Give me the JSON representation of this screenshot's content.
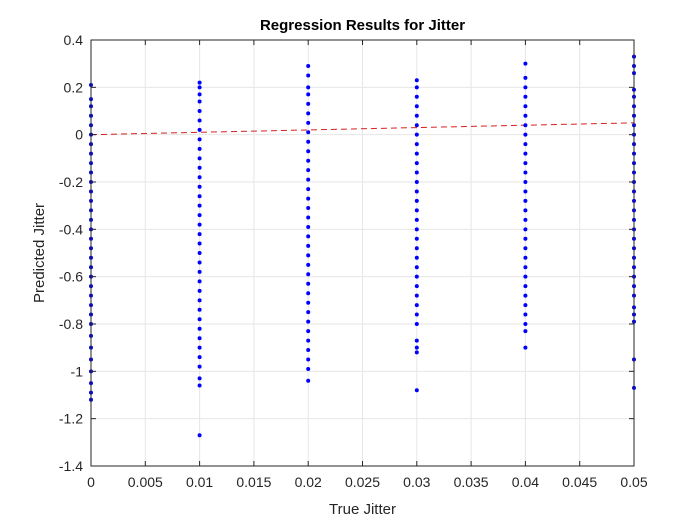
{
  "chart_data": {
    "type": "scatter",
    "title": "Regression Results for Jitter",
    "xlabel": "True Jitter",
    "ylabel": "Predicted Jitter",
    "xlim": [
      0,
      0.05
    ],
    "ylim": [
      -1.4,
      0.4
    ],
    "xticks": [
      0,
      0.005,
      0.01,
      0.015,
      0.02,
      0.025,
      0.03,
      0.035,
      0.04,
      0.045,
      0.05
    ],
    "xtick_labels": [
      "0",
      "0.005",
      "0.01",
      "0.015",
      "0.02",
      "0.025",
      "0.03",
      "0.035",
      "0.04",
      "0.045",
      "0.05"
    ],
    "yticks": [
      0.4,
      0.2,
      0,
      -0.2,
      -0.4,
      -0.6,
      -0.8,
      -1,
      -1.2,
      -1.4
    ],
    "ytick_labels": [
      "0.4",
      "0.2",
      "0",
      "-0.2",
      "-0.4",
      "-0.6",
      "-0.8",
      "-1",
      "-1.2",
      "-1.4"
    ],
    "grid": true,
    "colors": {
      "points": "#0000ff",
      "reference_line": "#d62020",
      "grid": "#e6e6e6",
      "axis": "#262626"
    },
    "series": [
      {
        "style": "points",
        "points": [
          {
            "x": 0,
            "y": 0.21
          },
          {
            "x": 0,
            "y": 0.15
          },
          {
            "x": 0,
            "y": 0.12
          },
          {
            "x": 0,
            "y": 0.08
          },
          {
            "x": 0,
            "y": 0.04
          },
          {
            "x": 0,
            "y": 0.0
          },
          {
            "x": 0,
            "y": -0.04
          },
          {
            "x": 0,
            "y": -0.08
          },
          {
            "x": 0,
            "y": -0.12
          },
          {
            "x": 0,
            "y": -0.16
          },
          {
            "x": 0,
            "y": -0.2
          },
          {
            "x": 0,
            "y": -0.24
          },
          {
            "x": 0,
            "y": -0.28
          },
          {
            "x": 0,
            "y": -0.32
          },
          {
            "x": 0,
            "y": -0.36
          },
          {
            "x": 0,
            "y": -0.4
          },
          {
            "x": 0,
            "y": -0.44
          },
          {
            "x": 0,
            "y": -0.48
          },
          {
            "x": 0,
            "y": -0.52
          },
          {
            "x": 0,
            "y": -0.56
          },
          {
            "x": 0,
            "y": -0.6
          },
          {
            "x": 0,
            "y": -0.64
          },
          {
            "x": 0,
            "y": -0.68
          },
          {
            "x": 0,
            "y": -0.72
          },
          {
            "x": 0,
            "y": -0.76
          },
          {
            "x": 0,
            "y": -0.8
          },
          {
            "x": 0,
            "y": -0.85
          },
          {
            "x": 0,
            "y": -0.9
          },
          {
            "x": 0,
            "y": -0.95
          },
          {
            "x": 0,
            "y": -1.0
          },
          {
            "x": 0,
            "y": -1.05
          },
          {
            "x": 0,
            "y": -1.09
          },
          {
            "x": 0,
            "y": -1.12
          },
          {
            "x": 0.01,
            "y": 0.22
          },
          {
            "x": 0.01,
            "y": 0.2
          },
          {
            "x": 0.01,
            "y": 0.17
          },
          {
            "x": 0.01,
            "y": 0.14
          },
          {
            "x": 0.01,
            "y": 0.1
          },
          {
            "x": 0.01,
            "y": 0.06
          },
          {
            "x": 0.01,
            "y": 0.02
          },
          {
            "x": 0.01,
            "y": -0.02
          },
          {
            "x": 0.01,
            "y": -0.06
          },
          {
            "x": 0.01,
            "y": -0.1
          },
          {
            "x": 0.01,
            "y": -0.14
          },
          {
            "x": 0.01,
            "y": -0.18
          },
          {
            "x": 0.01,
            "y": -0.22
          },
          {
            "x": 0.01,
            "y": -0.26
          },
          {
            "x": 0.01,
            "y": -0.3
          },
          {
            "x": 0.01,
            "y": -0.34
          },
          {
            "x": 0.01,
            "y": -0.38
          },
          {
            "x": 0.01,
            "y": -0.42
          },
          {
            "x": 0.01,
            "y": -0.46
          },
          {
            "x": 0.01,
            "y": -0.5
          },
          {
            "x": 0.01,
            "y": -0.54
          },
          {
            "x": 0.01,
            "y": -0.58
          },
          {
            "x": 0.01,
            "y": -0.62
          },
          {
            "x": 0.01,
            "y": -0.66
          },
          {
            "x": 0.01,
            "y": -0.7
          },
          {
            "x": 0.01,
            "y": -0.74
          },
          {
            "x": 0.01,
            "y": -0.78
          },
          {
            "x": 0.01,
            "y": -0.82
          },
          {
            "x": 0.01,
            "y": -0.86
          },
          {
            "x": 0.01,
            "y": -0.9
          },
          {
            "x": 0.01,
            "y": -0.94
          },
          {
            "x": 0.01,
            "y": -0.98
          },
          {
            "x": 0.01,
            "y": -1.03
          },
          {
            "x": 0.01,
            "y": -1.06
          },
          {
            "x": 0.01,
            "y": -1.27
          },
          {
            "x": 0.02,
            "y": 0.29
          },
          {
            "x": 0.02,
            "y": 0.25
          },
          {
            "x": 0.02,
            "y": 0.2
          },
          {
            "x": 0.02,
            "y": 0.17
          },
          {
            "x": 0.02,
            "y": 0.13
          },
          {
            "x": 0.02,
            "y": 0.09
          },
          {
            "x": 0.02,
            "y": 0.05
          },
          {
            "x": 0.02,
            "y": 0.01
          },
          {
            "x": 0.02,
            "y": -0.03
          },
          {
            "x": 0.02,
            "y": -0.07
          },
          {
            "x": 0.02,
            "y": -0.11
          },
          {
            "x": 0.02,
            "y": -0.15
          },
          {
            "x": 0.02,
            "y": -0.19
          },
          {
            "x": 0.02,
            "y": -0.23
          },
          {
            "x": 0.02,
            "y": -0.27
          },
          {
            "x": 0.02,
            "y": -0.31
          },
          {
            "x": 0.02,
            "y": -0.35
          },
          {
            "x": 0.02,
            "y": -0.39
          },
          {
            "x": 0.02,
            "y": -0.43
          },
          {
            "x": 0.02,
            "y": -0.47
          },
          {
            "x": 0.02,
            "y": -0.51
          },
          {
            "x": 0.02,
            "y": -0.55
          },
          {
            "x": 0.02,
            "y": -0.59
          },
          {
            "x": 0.02,
            "y": -0.63
          },
          {
            "x": 0.02,
            "y": -0.67
          },
          {
            "x": 0.02,
            "y": -0.71
          },
          {
            "x": 0.02,
            "y": -0.75
          },
          {
            "x": 0.02,
            "y": -0.79
          },
          {
            "x": 0.02,
            "y": -0.83
          },
          {
            "x": 0.02,
            "y": -0.87
          },
          {
            "x": 0.02,
            "y": -0.91
          },
          {
            "x": 0.02,
            "y": -0.95
          },
          {
            "x": 0.02,
            "y": -0.99
          },
          {
            "x": 0.02,
            "y": -1.04
          },
          {
            "x": 0.03,
            "y": 0.23
          },
          {
            "x": 0.03,
            "y": 0.2
          },
          {
            "x": 0.03,
            "y": 0.16
          },
          {
            "x": 0.03,
            "y": 0.12
          },
          {
            "x": 0.03,
            "y": 0.08
          },
          {
            "x": 0.03,
            "y": 0.04
          },
          {
            "x": 0.03,
            "y": 0.0
          },
          {
            "x": 0.03,
            "y": -0.04
          },
          {
            "x": 0.03,
            "y": -0.08
          },
          {
            "x": 0.03,
            "y": -0.12
          },
          {
            "x": 0.03,
            "y": -0.16
          },
          {
            "x": 0.03,
            "y": -0.2
          },
          {
            "x": 0.03,
            "y": -0.24
          },
          {
            "x": 0.03,
            "y": -0.28
          },
          {
            "x": 0.03,
            "y": -0.32
          },
          {
            "x": 0.03,
            "y": -0.36
          },
          {
            "x": 0.03,
            "y": -0.4
          },
          {
            "x": 0.03,
            "y": -0.44
          },
          {
            "x": 0.03,
            "y": -0.48
          },
          {
            "x": 0.03,
            "y": -0.52
          },
          {
            "x": 0.03,
            "y": -0.56
          },
          {
            "x": 0.03,
            "y": -0.6
          },
          {
            "x": 0.03,
            "y": -0.64
          },
          {
            "x": 0.03,
            "y": -0.68
          },
          {
            "x": 0.03,
            "y": -0.72
          },
          {
            "x": 0.03,
            "y": -0.76
          },
          {
            "x": 0.03,
            "y": -0.8
          },
          {
            "x": 0.03,
            "y": -0.87
          },
          {
            "x": 0.03,
            "y": -0.9
          },
          {
            "x": 0.03,
            "y": -0.92
          },
          {
            "x": 0.03,
            "y": -1.08
          },
          {
            "x": 0.04,
            "y": 0.3
          },
          {
            "x": 0.04,
            "y": 0.24
          },
          {
            "x": 0.04,
            "y": 0.2
          },
          {
            "x": 0.04,
            "y": 0.16
          },
          {
            "x": 0.04,
            "y": 0.12
          },
          {
            "x": 0.04,
            "y": 0.08
          },
          {
            "x": 0.04,
            "y": 0.04
          },
          {
            "x": 0.04,
            "y": 0.0
          },
          {
            "x": 0.04,
            "y": -0.04
          },
          {
            "x": 0.04,
            "y": -0.08
          },
          {
            "x": 0.04,
            "y": -0.12
          },
          {
            "x": 0.04,
            "y": -0.16
          },
          {
            "x": 0.04,
            "y": -0.2
          },
          {
            "x": 0.04,
            "y": -0.24
          },
          {
            "x": 0.04,
            "y": -0.28
          },
          {
            "x": 0.04,
            "y": -0.32
          },
          {
            "x": 0.04,
            "y": -0.36
          },
          {
            "x": 0.04,
            "y": -0.4
          },
          {
            "x": 0.04,
            "y": -0.44
          },
          {
            "x": 0.04,
            "y": -0.48
          },
          {
            "x": 0.04,
            "y": -0.52
          },
          {
            "x": 0.04,
            "y": -0.56
          },
          {
            "x": 0.04,
            "y": -0.6
          },
          {
            "x": 0.04,
            "y": -0.64
          },
          {
            "x": 0.04,
            "y": -0.68
          },
          {
            "x": 0.04,
            "y": -0.72
          },
          {
            "x": 0.04,
            "y": -0.76
          },
          {
            "x": 0.04,
            "y": -0.8
          },
          {
            "x": 0.04,
            "y": -0.83
          },
          {
            "x": 0.04,
            "y": -0.9
          },
          {
            "x": 0.05,
            "y": 0.33
          },
          {
            "x": 0.05,
            "y": 0.29
          },
          {
            "x": 0.05,
            "y": 0.26
          },
          {
            "x": 0.05,
            "y": 0.19
          },
          {
            "x": 0.05,
            "y": 0.16
          },
          {
            "x": 0.05,
            "y": 0.12
          },
          {
            "x": 0.05,
            "y": 0.08
          },
          {
            "x": 0.05,
            "y": 0.04
          },
          {
            "x": 0.05,
            "y": 0.0
          },
          {
            "x": 0.05,
            "y": -0.04
          },
          {
            "x": 0.05,
            "y": -0.08
          },
          {
            "x": 0.05,
            "y": -0.12
          },
          {
            "x": 0.05,
            "y": -0.16
          },
          {
            "x": 0.05,
            "y": -0.2
          },
          {
            "x": 0.05,
            "y": -0.24
          },
          {
            "x": 0.05,
            "y": -0.28
          },
          {
            "x": 0.05,
            "y": -0.32
          },
          {
            "x": 0.05,
            "y": -0.36
          },
          {
            "x": 0.05,
            "y": -0.4
          },
          {
            "x": 0.05,
            "y": -0.44
          },
          {
            "x": 0.05,
            "y": -0.48
          },
          {
            "x": 0.05,
            "y": -0.52
          },
          {
            "x": 0.05,
            "y": -0.56
          },
          {
            "x": 0.05,
            "y": -0.6
          },
          {
            "x": 0.05,
            "y": -0.64
          },
          {
            "x": 0.05,
            "y": -0.68
          },
          {
            "x": 0.05,
            "y": -0.73
          },
          {
            "x": 0.05,
            "y": -0.76
          },
          {
            "x": 0.05,
            "y": -0.79
          },
          {
            "x": 0.05,
            "y": -0.95
          },
          {
            "x": 0.05,
            "y": -1.07
          }
        ]
      },
      {
        "style": "dashed-line",
        "points": [
          {
            "x": 0,
            "y": 0
          },
          {
            "x": 0.05,
            "y": 0.05
          }
        ]
      }
    ]
  }
}
